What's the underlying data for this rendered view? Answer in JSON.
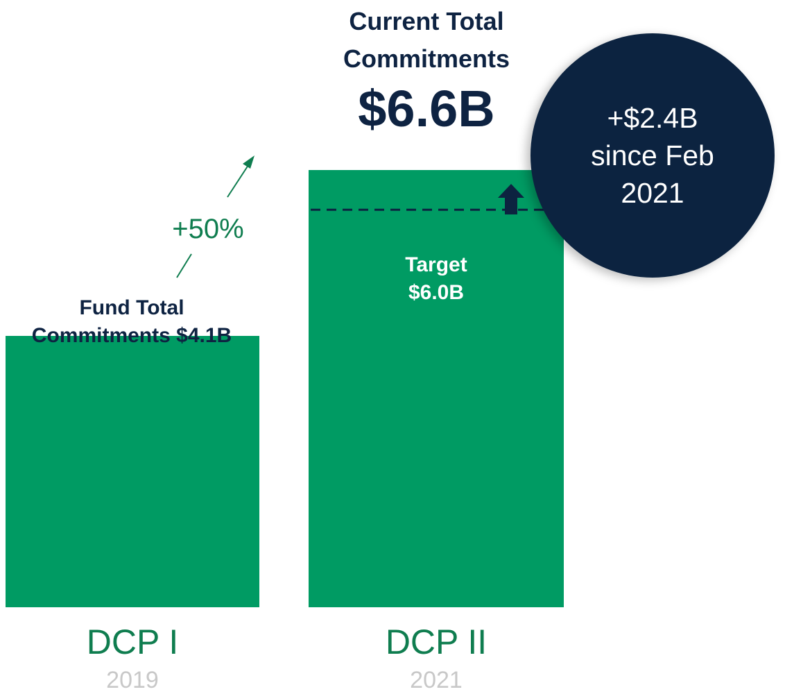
{
  "chart_data": {
    "type": "bar",
    "categories": [
      "DCP I",
      "DCP II"
    ],
    "years": [
      "2019",
      "2021"
    ],
    "values": [
      4.1,
      6.6
    ],
    "bar_labels": [
      "Fund Total\nCommitments $4.1B",
      "Target\n$6.0B"
    ],
    "target_value": 6.0,
    "growth_label": "+50%",
    "headline": "Current Total\nCommitments",
    "headline_value": "$6.6B",
    "badge_lines": [
      "+$2.4B",
      "since Feb",
      "2021"
    ],
    "units": "$B",
    "ylim": [
      0,
      6.6
    ],
    "colors": {
      "bar": "#009b63",
      "navy": "#0c2340",
      "green_text": "#0f7d4f",
      "year_text": "#c8c8c8"
    }
  }
}
